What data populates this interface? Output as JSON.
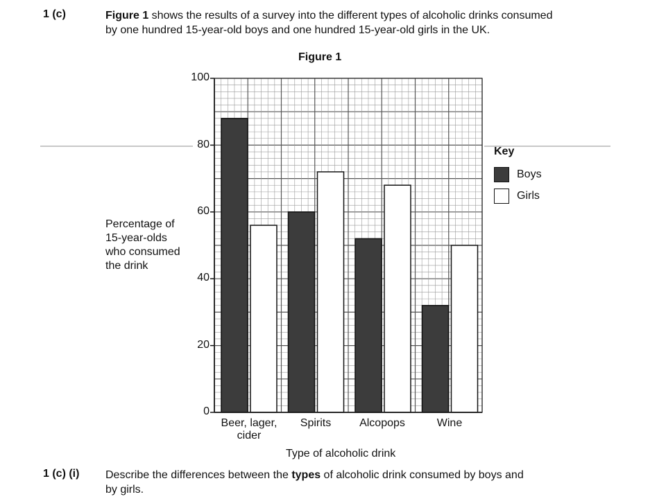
{
  "question": {
    "number": "1 (c)",
    "intro_bold": "Figure 1",
    "intro_line1_rest": " shows the results of a survey into the different types of alcoholic drinks consumed",
    "intro_line2": "by one hundred 15-year-old boys and one hundred 15-year-old girls in the UK."
  },
  "subquestion": {
    "number": "1 (c) (i)",
    "text_before": "Describe the differences between the ",
    "text_bold": "types",
    "text_after": " of alcoholic drink consumed by boys and",
    "line2": "by girls."
  },
  "colors": {
    "boys": "#3c3c3c",
    "girls": "#ffffff",
    "grid_minor": "#9a9a9a",
    "grid_major": "#555555"
  },
  "chart_data": {
    "type": "bar",
    "title": "Figure 1",
    "categories": [
      "Beer, lager, cider",
      "Spirits",
      "Alcopops",
      "Wine"
    ],
    "category_lines": [
      [
        "Beer, lager,",
        "cider"
      ],
      [
        "Spirits"
      ],
      [
        "Alcopops"
      ],
      [
        "Wine"
      ]
    ],
    "series": [
      {
        "name": "Boys",
        "values": [
          88,
          60,
          52,
          32
        ]
      },
      {
        "name": "Girls",
        "values": [
          56,
          72,
          68,
          50
        ]
      }
    ],
    "xlabel": "Type of alcoholic drink",
    "ylabel_lines": [
      "Percentage of",
      "15-year-olds",
      "who consumed",
      "the drink"
    ],
    "ylim": [
      0,
      100
    ],
    "yticks": [
      0,
      20,
      40,
      60,
      80,
      100
    ],
    "grid": true,
    "legend": {
      "title": "Key",
      "position": "right"
    }
  }
}
